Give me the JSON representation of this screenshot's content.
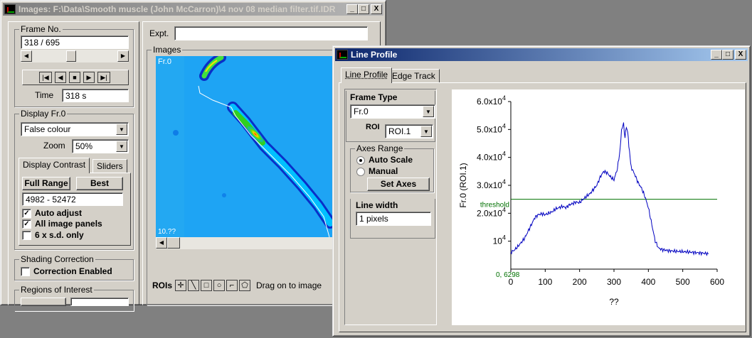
{
  "images_window": {
    "title": "Images: F:\\Data\\Smooth muscle (John McCarron)\\4 nov 08 median filter.tif.IDR",
    "window_buttons": {
      "minimize": "_",
      "maximize": "□",
      "close": "X"
    },
    "frame_no": {
      "group_label": "Frame No.",
      "value": "318 / 695",
      "slider_position": 0.45,
      "transport": [
        "|◀◀",
        "◀",
        "■",
        "▶",
        "▶▶|"
      ],
      "time_label": "Time",
      "time_value": "318 s"
    },
    "display": {
      "group_label": "Display Fr.0",
      "colour_mode": "False colour",
      "zoom_label": "Zoom",
      "zoom_value": "50%",
      "tabs": [
        "Display Contrast",
        "Sliders"
      ],
      "full_range_button": "Full Range",
      "best_button": "Best",
      "range_value": "4982 - 52472",
      "checkboxes": [
        {
          "label": "Auto adjust",
          "checked": true
        },
        {
          "label": "All image panels",
          "checked": true
        },
        {
          "label": "6 x s.d. only",
          "checked": false
        }
      ]
    },
    "shading": {
      "group_label": "Shading Correction",
      "checkbox_label": "Correction Enabled",
      "checked": false
    },
    "roi_group": {
      "group_label": "Regions of Interest"
    },
    "expt_label": "Expt.",
    "expt_value": "",
    "images_group_label": "Images",
    "image_frame_label": "Fr.0",
    "image_bottom_label": "10.??",
    "rois_label": "ROIs",
    "roi_tools": [
      "cross-icon",
      "line-icon",
      "rectangle-icon",
      "ellipse-icon",
      "polyline-icon",
      "polygon-icon"
    ],
    "drag_hint": "Drag on to image"
  },
  "line_profile_window": {
    "title": "Line Profile",
    "window_buttons": {
      "minimize": "_",
      "maximize": "□",
      "close": "X"
    },
    "tabs": [
      "Line Profile",
      "Edge Track"
    ],
    "frame_type": {
      "group_label": "Frame Type",
      "value": "Fr.0",
      "roi_label": "ROI",
      "roi_value": "ROI.1"
    },
    "axes_range": {
      "group_label": "Axes Range",
      "options": [
        {
          "label": "Auto Scale",
          "selected": true
        },
        {
          "label": "Manual",
          "selected": false
        }
      ],
      "set_axes_button": "Set Axes"
    },
    "line_width": {
      "group_label": "Line width",
      "value": "1 pixels"
    }
  },
  "chart_data": {
    "type": "line",
    "xlabel": "??",
    "ylabel": "Fr.0 (ROI.1)",
    "xlim": [
      0,
      600
    ],
    "ylim": [
      0,
      60000
    ],
    "x_ticks": [
      "0",
      "100",
      "200",
      "300",
      "400",
      "500",
      "600"
    ],
    "y_ticks": [
      {
        "value": 10000,
        "label": "10",
        "exp": "4"
      },
      {
        "value": 20000,
        "label": "2.0x10",
        "exp": "4"
      },
      {
        "value": 30000,
        "label": "3.0x10",
        "exp": "4"
      },
      {
        "value": 40000,
        "label": "4.0x10",
        "exp": "4"
      },
      {
        "value": 50000,
        "label": "5.0x10",
        "exp": "4"
      },
      {
        "value": 60000,
        "label": "6.0x10",
        "exp": "4"
      }
    ],
    "origin_label": "0, 6298",
    "threshold": {
      "value": 25000,
      "label": "threshold"
    },
    "colors": {
      "series": "#0000c0",
      "threshold": "#007000",
      "origin": "#007000"
    },
    "series": [
      {
        "x": [
          0,
          10,
          20,
          30,
          40,
          50,
          60,
          70,
          80,
          90,
          100,
          110,
          120,
          130,
          140,
          150,
          160,
          170,
          180,
          190,
          200,
          210,
          220,
          230,
          240,
          250,
          260,
          270,
          280,
          290,
          300,
          310,
          318,
          322,
          328,
          332,
          336,
          340,
          345,
          350,
          360,
          370,
          380,
          390,
          400,
          410,
          420,
          430,
          440,
          450,
          460,
          470,
          480,
          490,
          500,
          510,
          520,
          530,
          540,
          550,
          560,
          570,
          575
        ],
        "y": [
          6000,
          6800,
          8000,
          9500,
          11000,
          13500,
          16000,
          18500,
          19500,
          19800,
          19500,
          20000,
          20500,
          21500,
          22000,
          22500,
          22000,
          23000,
          23500,
          24000,
          23800,
          25000,
          26000,
          27000,
          28500,
          30000,
          33000,
          35000,
          34500,
          33000,
          32000,
          36000,
          43000,
          50000,
          52000,
          47000,
          51000,
          49000,
          42000,
          36500,
          34000,
          31000,
          29000,
          26000,
          22000,
          16000,
          10000,
          7500,
          7000,
          6800,
          6600,
          6500,
          6400,
          6300,
          6200,
          6200,
          6100,
          6000,
          5900,
          5800,
          5700,
          5600,
          5500
        ]
      }
    ]
  }
}
